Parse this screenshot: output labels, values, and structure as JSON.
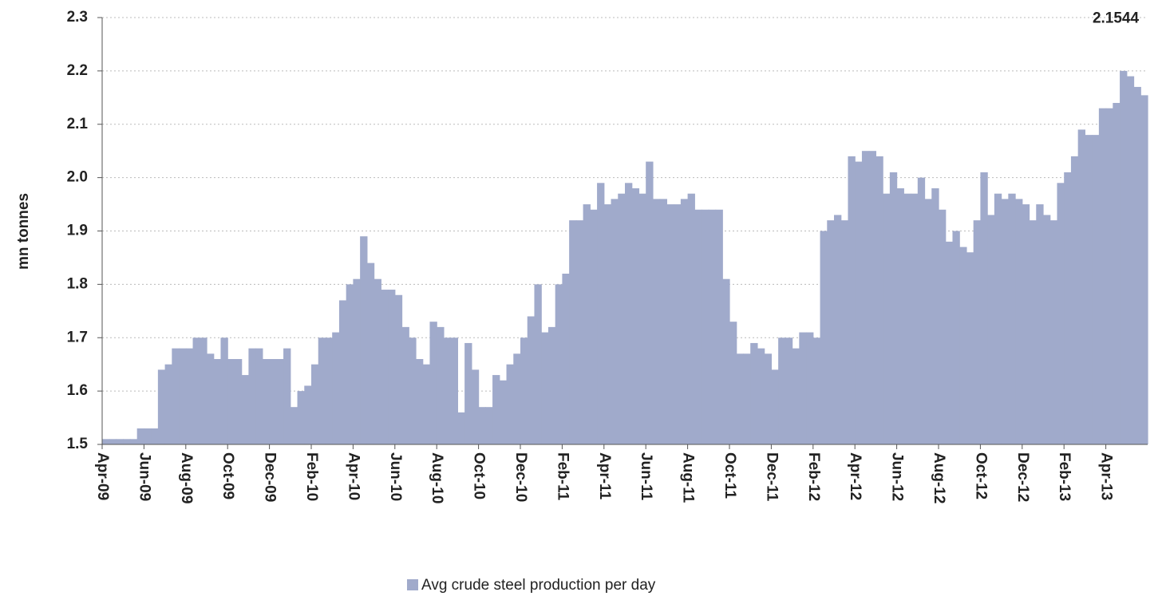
{
  "chart_data": {
    "type": "step-area",
    "y_label": "mn tonnes",
    "annotation": "2.1544",
    "color": "#a0aacb",
    "grid": true,
    "legend": "bottom",
    "ylim": [
      1.5,
      2.3
    ],
    "yticks": [
      1.5,
      1.6,
      1.7,
      1.8,
      1.9,
      {
        "value": 2,
        "label": "2.0"
      },
      2.1,
      2.2,
      2.3
    ],
    "categories": [
      "Apr-09",
      null,
      null,
      null,
      null,
      null,
      "Jun-09",
      null,
      null,
      null,
      null,
      null,
      "Aug-09",
      null,
      null,
      null,
      null,
      null,
      "Oct-09",
      null,
      null,
      null,
      null,
      null,
      "Dec-09",
      null,
      null,
      null,
      null,
      null,
      "Feb-10",
      null,
      null,
      null,
      null,
      null,
      "Apr-10",
      null,
      null,
      null,
      null,
      null,
      "Jun-10",
      null,
      null,
      null,
      null,
      null,
      "Aug-10",
      null,
      null,
      null,
      null,
      null,
      "Oct-10",
      null,
      null,
      null,
      null,
      null,
      "Dec-10",
      null,
      null,
      null,
      null,
      null,
      "Feb-11",
      null,
      null,
      null,
      null,
      null,
      "Apr-11",
      null,
      null,
      null,
      null,
      null,
      "Jun-11",
      null,
      null,
      null,
      null,
      null,
      "Aug-11",
      null,
      null,
      null,
      null,
      null,
      "Oct-11",
      null,
      null,
      null,
      null,
      null,
      "Dec-11",
      null,
      null,
      null,
      null,
      null,
      "Feb-12",
      null,
      null,
      null,
      null,
      null,
      "Apr-12",
      null,
      null,
      null,
      null,
      null,
      "Jun-12",
      null,
      null,
      null,
      null,
      null,
      "Aug-12",
      null,
      null,
      null,
      null,
      null,
      "Oct-12",
      null,
      null,
      null,
      null,
      null,
      "Dec-12",
      null,
      null,
      null,
      null,
      null,
      "Feb-13",
      null,
      null,
      null,
      null,
      null,
      "Apr-13",
      null,
      null,
      null,
      null,
      null
    ],
    "series": [
      {
        "name": "Avg crude steel production per day",
        "color": "#a0aacb",
        "values": [
          1.51,
          1.51,
          1.51,
          1.51,
          1.51,
          1.53,
          1.53,
          1.53,
          1.64,
          1.65,
          1.68,
          1.68,
          1.68,
          1.7,
          1.7,
          1.67,
          1.66,
          1.7,
          1.66,
          1.66,
          1.63,
          1.68,
          1.68,
          1.66,
          1.66,
          1.66,
          1.68,
          1.57,
          1.6,
          1.61,
          1.65,
          1.7,
          1.7,
          1.71,
          1.77,
          1.8,
          1.81,
          1.89,
          1.84,
          1.81,
          1.79,
          1.79,
          1.78,
          1.72,
          1.7,
          1.66,
          1.65,
          1.73,
          1.72,
          1.7,
          1.7,
          1.56,
          1.69,
          1.64,
          1.57,
          1.57,
          1.63,
          1.62,
          1.65,
          1.67,
          1.7,
          1.74,
          1.8,
          1.71,
          1.72,
          1.8,
          1.82,
          1.92,
          1.92,
          1.95,
          1.94,
          1.99,
          1.95,
          1.96,
          1.97,
          1.99,
          1.98,
          1.97,
          2.03,
          1.96,
          1.96,
          1.95,
          1.95,
          1.96,
          1.97,
          1.94,
          1.94,
          1.94,
          1.94,
          1.81,
          1.73,
          1.67,
          1.67,
          1.69,
          1.68,
          1.67,
          1.64,
          1.7,
          1.7,
          1.68,
          1.71,
          1.71,
          1.7,
          1.9,
          1.92,
          1.93,
          1.92,
          2.04,
          2.03,
          2.05,
          2.05,
          2.04,
          1.97,
          2.01,
          1.98,
          1.97,
          1.97,
          2.0,
          1.96,
          1.98,
          1.94,
          1.88,
          1.9,
          1.87,
          1.86,
          1.92,
          2.01,
          1.93,
          1.97,
          1.96,
          1.97,
          1.96,
          1.95,
          1.92,
          1.95,
          1.93,
          1.92,
          1.99,
          2.01,
          2.04,
          2.09,
          2.08,
          2.08,
          2.13,
          2.13,
          2.14,
          2.2,
          2.19,
          2.17,
          2.1544
        ]
      }
    ]
  }
}
